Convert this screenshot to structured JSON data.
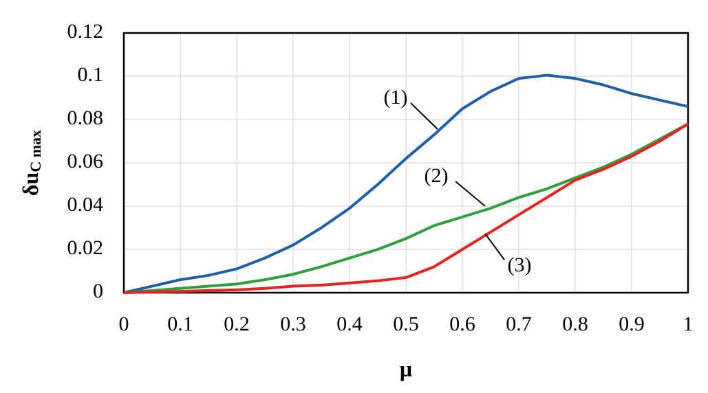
{
  "chart_data": {
    "type": "line",
    "xlabel": "μ",
    "ylabel": {
      "main": "δu",
      "sub": "C max"
    },
    "x": [
      0,
      0.05,
      0.1,
      0.15,
      0.2,
      0.25,
      0.3,
      0.35,
      0.4,
      0.45,
      0.5,
      0.55,
      0.6,
      0.65,
      0.7,
      0.75,
      0.8,
      0.85,
      0.9,
      0.95,
      1
    ],
    "series": [
      {
        "name": "(1)",
        "color": "#1f5fa8",
        "values": [
          0,
          0.003,
          0.006,
          0.008,
          0.011,
          0.016,
          0.022,
          0.03,
          0.039,
          0.05,
          0.062,
          0.073,
          0.085,
          0.093,
          0.099,
          0.1005,
          0.099,
          0.096,
          0.092,
          0.089,
          0.086
        ]
      },
      {
        "name": "(2)",
        "color": "#2e9e3e",
        "values": [
          0,
          0.001,
          0.002,
          0.003,
          0.004,
          0.006,
          0.0085,
          0.012,
          0.016,
          0.02,
          0.025,
          0.031,
          0.035,
          0.039,
          0.044,
          0.048,
          0.053,
          0.058,
          0.064,
          0.071,
          0.078
        ]
      },
      {
        "name": "(3)",
        "color": "#e8231f",
        "values": [
          0,
          0.0003,
          0.0006,
          0.001,
          0.0013,
          0.002,
          0.003,
          0.0035,
          0.0045,
          0.0055,
          0.007,
          0.012,
          0.02,
          0.028,
          0.036,
          0.044,
          0.052,
          0.057,
          0.063,
          0.07,
          0.078
        ]
      }
    ],
    "xlim": [
      0,
      1
    ],
    "xticks": [
      0,
      0.1,
      0.2,
      0.3,
      0.4,
      0.5,
      0.6,
      0.7,
      0.8,
      0.9,
      1
    ],
    "ylim": [
      0,
      0.12
    ],
    "yticks": [
      0,
      0.02,
      0.04,
      0.06,
      0.08,
      0.1,
      0.12
    ],
    "grid": true
  }
}
